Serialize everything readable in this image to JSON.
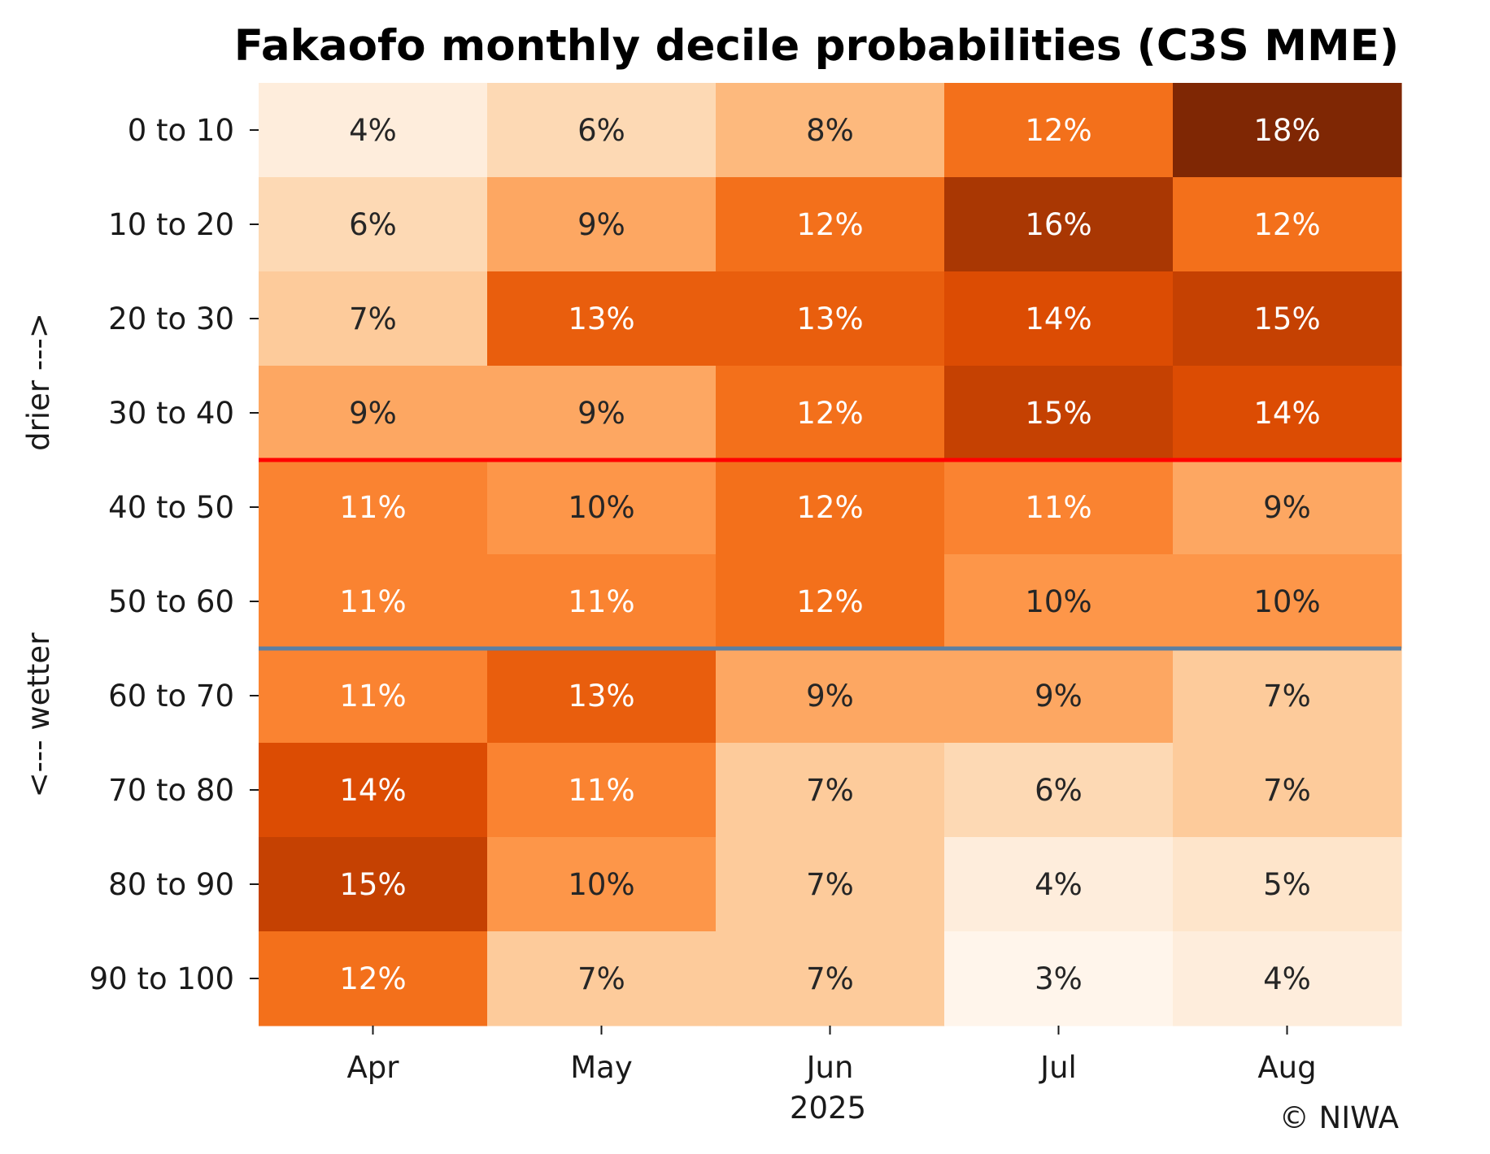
{
  "chart_data": {
    "type": "heatmap",
    "title": "Fakaofo monthly decile probabilities (C3S MME)",
    "xlabel": "2025",
    "ylabel_top": "drier --->",
    "ylabel_bottom": "<--- wetter",
    "credit": "© NIWA",
    "columns": [
      "Apr",
      "May",
      "Jun",
      "Jul",
      "Aug"
    ],
    "rows": [
      "0 to 10",
      "10 to 20",
      "20 to 30",
      "30 to 40",
      "40 to 50",
      "50 to 60",
      "60 to 70",
      "70 to 80",
      "80 to 90",
      "90 to 100"
    ],
    "values": [
      [
        4,
        6,
        8,
        12,
        18
      ],
      [
        6,
        9,
        12,
        16,
        12
      ],
      [
        7,
        13,
        13,
        14,
        15
      ],
      [
        9,
        9,
        12,
        15,
        14
      ],
      [
        11,
        10,
        12,
        11,
        9
      ],
      [
        11,
        11,
        12,
        10,
        10
      ],
      [
        11,
        13,
        9,
        9,
        7
      ],
      [
        14,
        11,
        7,
        6,
        7
      ],
      [
        15,
        10,
        7,
        4,
        5
      ],
      [
        12,
        7,
        7,
        3,
        4
      ]
    ],
    "value_suffix": "%",
    "colormap": "Oranges",
    "color_range": [
      3,
      18
    ],
    "separator_lines": [
      {
        "after_row": "30 to 40",
        "color": "#ff0000"
      },
      {
        "after_row": "50 to 60",
        "color": "#5b7fa3"
      }
    ]
  }
}
